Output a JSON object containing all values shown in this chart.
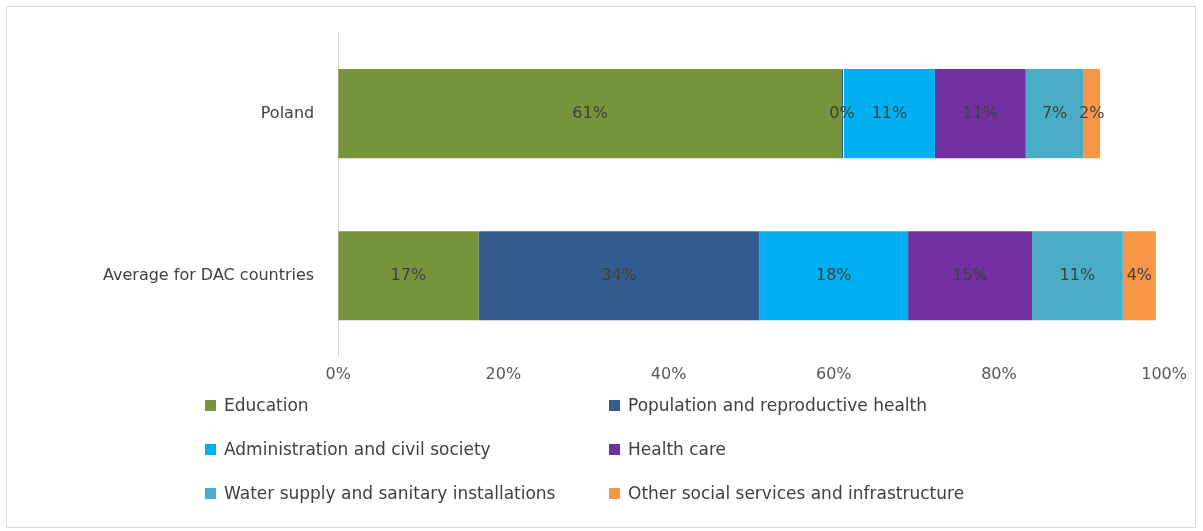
{
  "chart_data": {
    "type": "bar",
    "orientation": "horizontal",
    "stacked": true,
    "categories": [
      "Poland",
      "Average for DAC countries"
    ],
    "xlim": [
      0,
      100
    ],
    "xticks": [
      {
        "value": 0,
        "label": "0%"
      },
      {
        "value": 20,
        "label": "20%"
      },
      {
        "value": 40,
        "label": "40%"
      },
      {
        "value": 60,
        "label": "60%"
      },
      {
        "value": 80,
        "label": "80%"
      },
      {
        "value": 100,
        "label": "100%"
      }
    ],
    "legend": "bottom",
    "grid": false,
    "series": [
      {
        "name": "Education",
        "color": "#77933c",
        "values": [
          61,
          17
        ],
        "value_labels": [
          "61%",
          "17%"
        ]
      },
      {
        "name": "Population and reproductive health",
        "color": "#335c8c",
        "values": [
          0,
          34
        ],
        "value_labels": [
          "0%",
          "34%"
        ]
      },
      {
        "name": "Administration and civil society",
        "color": "#00b0f0",
        "values": [
          11,
          18
        ],
        "value_labels": [
          "11%",
          "18%"
        ]
      },
      {
        "name": "Health care",
        "color": "#7030a0",
        "values": [
          11,
          15
        ],
        "value_labels": [
          "11%",
          "15%"
        ]
      },
      {
        "name": "Water supply and sanitary installations",
        "color": "#4bacc6",
        "values": [
          7,
          11
        ],
        "value_labels": [
          "7%",
          "11%"
        ]
      },
      {
        "name": "Other social services and infrastructure",
        "color": "#f79646",
        "values": [
          2,
          4
        ],
        "value_labels": [
          "2%",
          "4%"
        ]
      }
    ]
  }
}
